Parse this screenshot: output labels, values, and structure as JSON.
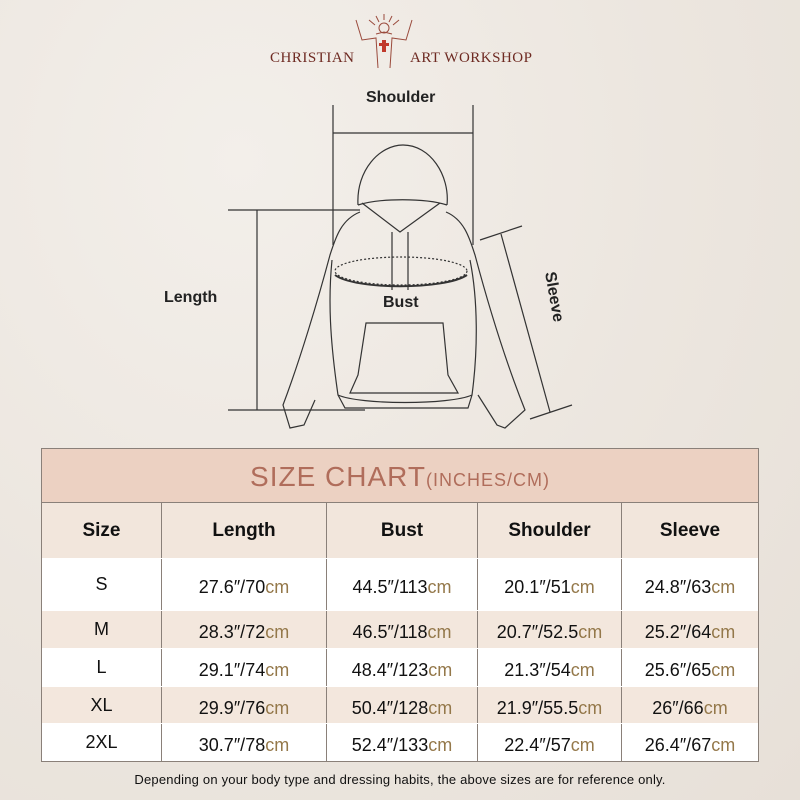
{
  "brand": {
    "left": "CHRISTIAN",
    "right": "ART WORKSHOP",
    "logo": "jesus-open-arms-cross-logo",
    "color": "#6e2a22"
  },
  "diagram": {
    "shoulder": "Shoulder",
    "length": "Length",
    "bust": "Bust",
    "sleeve": "Sleeve"
  },
  "table": {
    "title": "SIZE CHART",
    "subtitle": "(INCHES/CM)",
    "headers": [
      "Size",
      "Length",
      "Bust",
      "Shoulder",
      "Sleeve"
    ],
    "rows": [
      {
        "size": "S",
        "cells": [
          {
            "v": "27.6″/70",
            "u": "cm"
          },
          {
            "v": "44.5″/113",
            "u": "cm"
          },
          {
            "v": "20.1″/51",
            "u": "cm"
          },
          {
            "v": "24.8″/63",
            "u": "cm"
          }
        ]
      },
      {
        "size": "M",
        "cells": [
          {
            "v": "28.3″/72",
            "u": "cm"
          },
          {
            "v": "46.5″/118",
            "u": "cm"
          },
          {
            "v": "20.7″/52.5",
            "u": "cm"
          },
          {
            "v": "25.2″/64",
            "u": "cm"
          }
        ]
      },
      {
        "size": "L",
        "cells": [
          {
            "v": "29.1″/74",
            "u": "cm"
          },
          {
            "v": "48.4″/123",
            "u": "cm"
          },
          {
            "v": "21.3″/54",
            "u": "cm"
          },
          {
            "v": "25.6″/65",
            "u": "cm"
          }
        ]
      },
      {
        "size": "XL",
        "cells": [
          {
            "v": "29.9″/76",
            "u": "cm"
          },
          {
            "v": "50.4″/128",
            "u": "cm"
          },
          {
            "v": "21.9″/55.5",
            "u": "cm"
          },
          {
            "v": "26″/66",
            "u": "cm"
          }
        ]
      },
      {
        "size": "2XL",
        "cells": [
          {
            "v": "30.7″/78",
            "u": "cm"
          },
          {
            "v": "52.4″/133",
            "u": "cm"
          },
          {
            "v": "22.4″/57",
            "u": "cm"
          },
          {
            "v": "26.4″/67",
            "u": "cm"
          }
        ]
      }
    ],
    "colors": {
      "title_bg": "#ecd1c2",
      "title_text": "#b06d5b",
      "unit": "#94784a"
    }
  },
  "footer": "Depending on your body type and dressing habits, the above sizes are for reference only."
}
